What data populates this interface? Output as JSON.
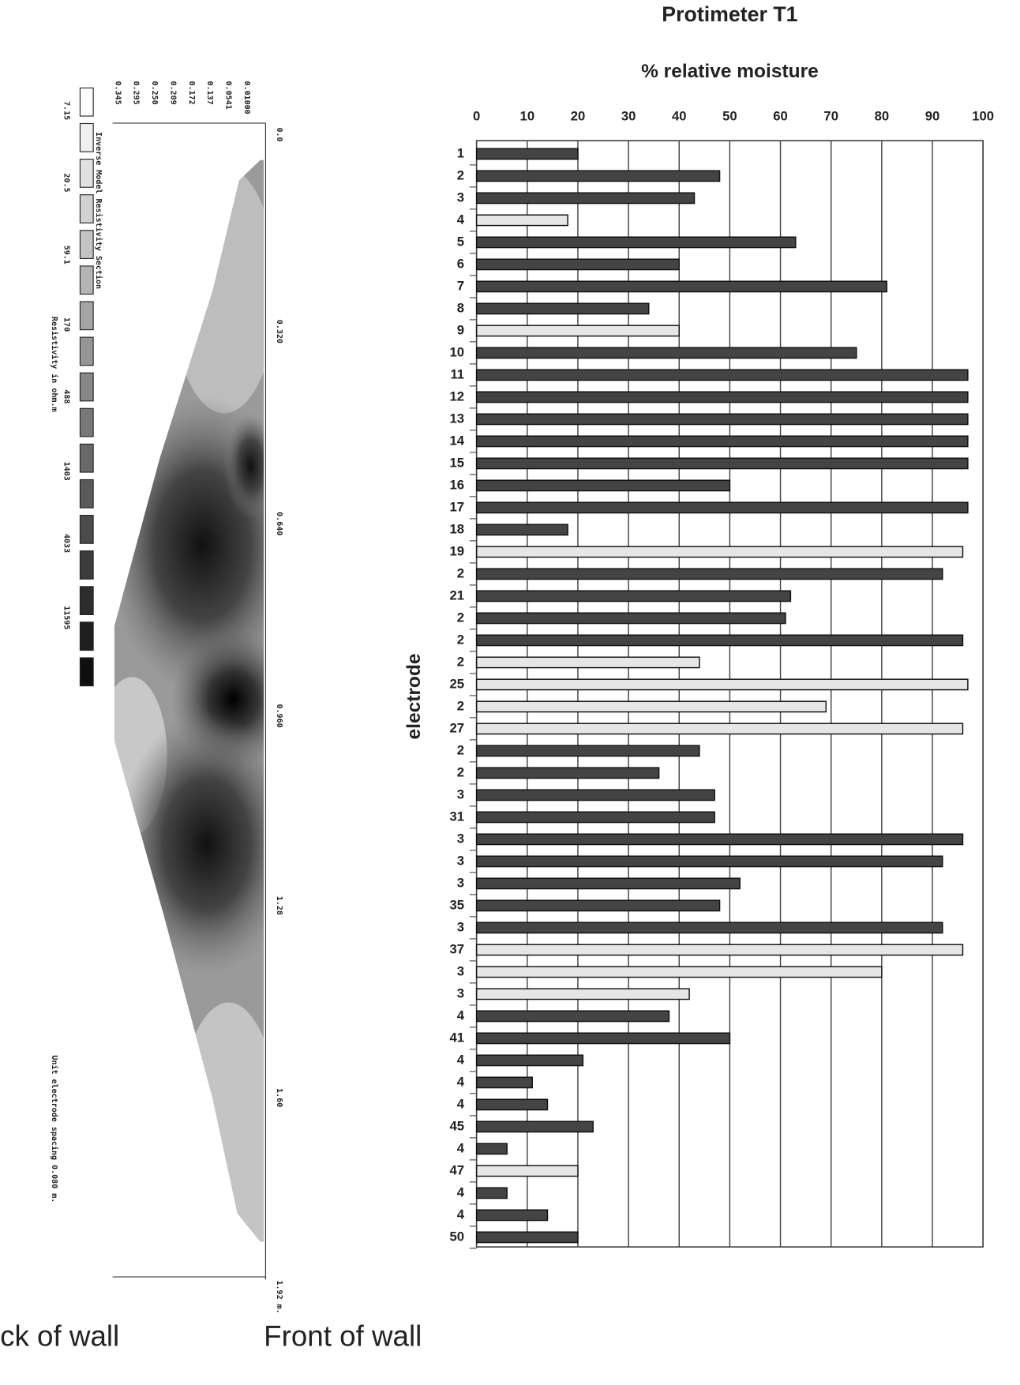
{
  "chart_data": {
    "type": "bar",
    "orientation": "horizontal",
    "title": "Protimeter T1",
    "x_label": "% relative moisture",
    "y_label": "electrode",
    "categories": [
      "1",
      "2",
      "3",
      "4",
      "5",
      "6",
      "7",
      "8",
      "9",
      "10",
      "11",
      "12",
      "13",
      "14",
      "15",
      "16",
      "17",
      "18",
      "19",
      "2",
      "21",
      "2",
      "2",
      "2",
      "25",
      "2",
      "27",
      "2",
      "2",
      "3",
      "31",
      "3",
      "3",
      "3",
      "35",
      "3",
      "37",
      "3",
      "3",
      "4",
      "41",
      "4",
      "4",
      "4",
      "45",
      "4",
      "47",
      "4",
      "4",
      "50"
    ],
    "values": [
      20,
      48,
      43,
      18,
      63,
      40,
      81,
      34,
      40,
      75,
      97,
      97,
      97,
      97,
      97,
      50,
      97,
      18,
      96,
      92,
      62,
      61,
      96,
      44,
      97,
      69,
      96,
      44,
      36,
      47,
      47,
      96,
      92,
      52,
      48,
      92,
      96,
      80,
      42,
      38,
      50,
      21,
      11,
      14,
      23,
      6,
      20,
      6,
      14,
      20
    ],
    "colors": [
      "#444",
      "#444",
      "#444",
      "#e6e6e6",
      "#444",
      "#444",
      "#444",
      "#444",
      "#e6e6e6",
      "#444",
      "#444",
      "#444",
      "#444",
      "#444",
      "#444",
      "#444",
      "#444",
      "#444",
      "#e6e6e6",
      "#444",
      "#444",
      "#444",
      "#444",
      "#e6e6e6",
      "#e6e6e6",
      "#e6e6e6",
      "#e6e6e6",
      "#444",
      "#444",
      "#444",
      "#444",
      "#444",
      "#444",
      "#444",
      "#444",
      "#444",
      "#e6e6e6",
      "#e6e6e6",
      "#e6e6e6",
      "#444",
      "#444",
      "#444",
      "#444",
      "#444",
      "#444",
      "#444",
      "#e6e6e6",
      "#444",
      "#444",
      "#444"
    ],
    "xlim": [
      0,
      100
    ],
    "xticks": [
      0,
      10,
      20,
      30,
      40,
      50,
      60,
      70,
      80,
      90,
      100
    ],
    "grid": true
  },
  "section": {
    "title": "Inverse Model Resistivity Section",
    "legend_values": [
      "7.15",
      "20.5",
      "59.1",
      "170",
      "488",
      "1403",
      "4033",
      "11595"
    ],
    "legend_caption": "Resistivity in ohm.m",
    "depth_labels": [
      "0.345",
      "0.295",
      "0.250",
      "0.209",
      "0.172",
      "0.137",
      "0.0541",
      "0.01000"
    ],
    "distance_labels": [
      "0.0",
      "0.320",
      "0.640",
      "0.960",
      "1.28",
      "1.60",
      "1.92 m."
    ],
    "spacing_note": "Unit electrode spacing 0.080 m."
  },
  "captions": {
    "back": "ck of wall",
    "front": "Front of wall"
  }
}
